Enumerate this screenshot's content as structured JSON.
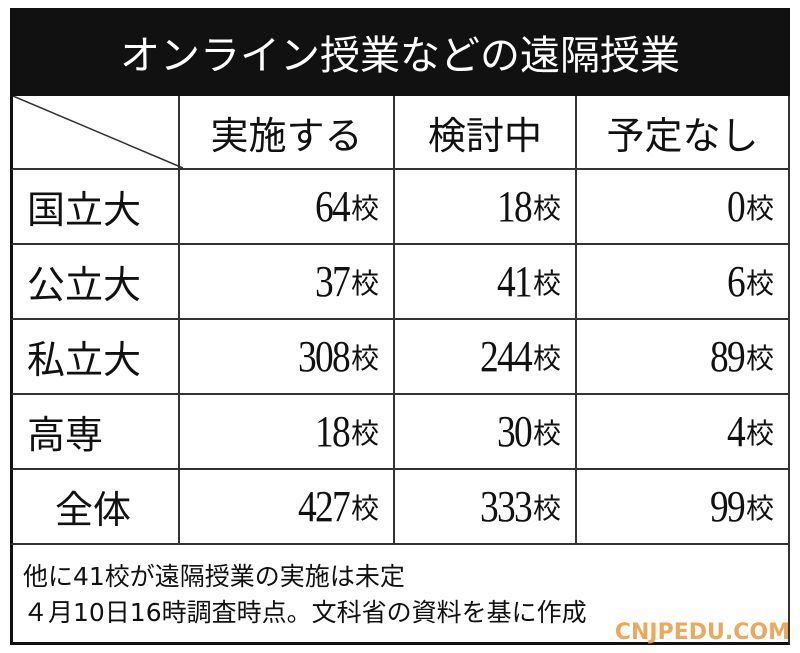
{
  "header": {
    "title": "オンライン授業などの遠隔授業"
  },
  "table": {
    "columns": [
      "実施する",
      "検討中",
      "予定なし"
    ],
    "rows": [
      {
        "label": "国立大",
        "cells": [
          {
            "value": 64,
            "unit": "校"
          },
          {
            "value": 18,
            "unit": "校"
          },
          {
            "value": 0,
            "unit": "校"
          }
        ]
      },
      {
        "label": "公立大",
        "cells": [
          {
            "value": 37,
            "unit": "校"
          },
          {
            "value": 41,
            "unit": "校"
          },
          {
            "value": 6,
            "unit": "校"
          }
        ]
      },
      {
        "label": "私立大",
        "cells": [
          {
            "value": 308,
            "unit": "校"
          },
          {
            "value": 244,
            "unit": "校"
          },
          {
            "value": 89,
            "unit": "校"
          }
        ]
      },
      {
        "label": "高専",
        "cells": [
          {
            "value": 18,
            "unit": "校"
          },
          {
            "value": 30,
            "unit": "校"
          },
          {
            "value": 4,
            "unit": "校"
          }
        ]
      },
      {
        "label": "全体",
        "cells": [
          {
            "value": 427,
            "unit": "校"
          },
          {
            "value": 333,
            "unit": "校"
          },
          {
            "value": 99,
            "unit": "校"
          }
        ]
      }
    ]
  },
  "notes": [
    "他に41校が遠隔授業の実施は未定",
    "４月10日16時調査時点。文科省の資料を基に作成"
  ],
  "watermark": "CNJPEDU.COM"
}
